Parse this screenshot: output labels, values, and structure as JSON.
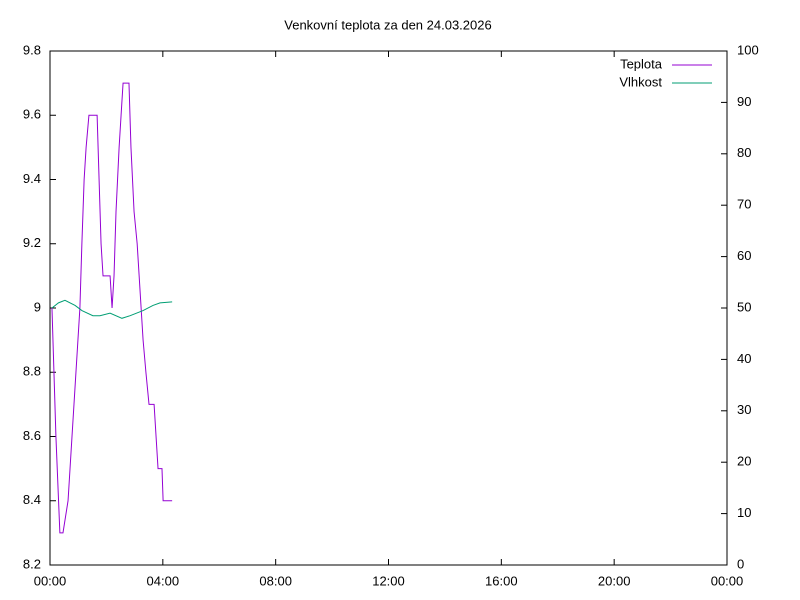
{
  "chart_data": {
    "type": "line",
    "title": "Venkovní teplota za den 24.03.2026",
    "xlim": [
      0,
      24
    ],
    "xticks": [
      {
        "value": 0,
        "label": "00:00"
      },
      {
        "value": 4,
        "label": "04:00"
      },
      {
        "value": 8,
        "label": "08:00"
      },
      {
        "value": 12,
        "label": "12:00"
      },
      {
        "value": 16,
        "label": "16:00"
      },
      {
        "value": 20,
        "label": "20:00"
      },
      {
        "value": 24,
        "label": "00:00"
      }
    ],
    "ylim": [
      8.2,
      9.8
    ],
    "yticks": [
      8.2,
      8.4,
      8.6,
      8.8,
      9,
      9.2,
      9.4,
      9.6,
      9.8
    ],
    "y2lim": [
      0,
      100
    ],
    "y2ticks": [
      0,
      10,
      20,
      30,
      40,
      50,
      60,
      70,
      80,
      90,
      100
    ],
    "legend": "top-right",
    "series": [
      {
        "name": "Teplota",
        "color": "#9400d3",
        "x": [
          0.07,
          0.21,
          0.35,
          0.46,
          0.64,
          0.71,
          0.78,
          0.85,
          0.92,
          0.99,
          1.06,
          1.13,
          1.21,
          1.28,
          1.38,
          1.67,
          1.74,
          1.81,
          1.88,
          2.13,
          2.2,
          2.27,
          2.34,
          2.45,
          2.52,
          2.59,
          2.8,
          2.87,
          2.98,
          3.09,
          3.16,
          3.3,
          3.4,
          3.51,
          3.69,
          3.76,
          3.83,
          3.97,
          4.01,
          4.33
        ],
        "values": [
          9.0,
          8.6,
          8.3,
          8.3,
          8.4,
          8.5,
          8.6,
          8.7,
          8.8,
          8.9,
          9.0,
          9.2,
          9.4,
          9.5,
          9.6,
          9.6,
          9.4,
          9.2,
          9.1,
          9.1,
          9.0,
          9.1,
          9.3,
          9.5,
          9.6,
          9.7,
          9.7,
          9.5,
          9.3,
          9.2,
          9.1,
          8.9,
          8.8,
          8.7,
          8.7,
          8.6,
          8.5,
          8.5,
          8.4,
          8.4
        ]
      },
      {
        "name": "Vlhkost",
        "color": "#009e73",
        "axis": "y2",
        "x": [
          0.07,
          0.3,
          0.53,
          0.89,
          1.13,
          1.52,
          1.77,
          2.13,
          2.55,
          2.84,
          3.3,
          3.65,
          3.9,
          4.33
        ],
        "values": [
          50,
          51,
          51.5,
          50.5,
          49.5,
          48.5,
          48.5,
          49,
          48,
          48.5,
          49.5,
          50.5,
          51,
          51.2
        ]
      }
    ]
  }
}
